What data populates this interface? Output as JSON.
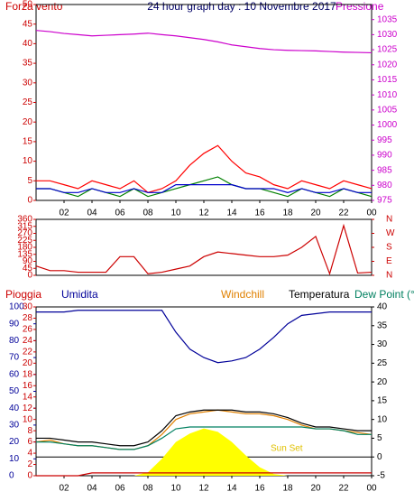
{
  "chart_data": [
    {
      "type": "line",
      "title": "24 hour graph day : 10 Novembre 2017",
      "y_label": "Forza vento",
      "y2_label": "Pressione",
      "x": [
        0,
        1,
        2,
        3,
        4,
        5,
        6,
        7,
        8,
        9,
        10,
        11,
        12,
        13,
        14,
        15,
        16,
        17,
        18,
        19,
        20,
        21,
        22,
        23,
        24
      ],
      "xlim": [
        0,
        24
      ],
      "xticks": [
        {
          "value": 2,
          "label": "02"
        },
        {
          "value": 4,
          "label": "04"
        },
        {
          "value": 6,
          "label": "06"
        },
        {
          "value": 8,
          "label": "08"
        },
        {
          "value": 10,
          "label": "10"
        },
        12,
        14,
        16,
        18,
        20,
        22,
        {
          "value": 24,
          "label": "00"
        }
      ],
      "ylim": [
        0,
        50
      ],
      "yticks": [
        0,
        5,
        10,
        15,
        20,
        25,
        30,
        35,
        40,
        45,
        50
      ],
      "ycolor": "#cc0000",
      "y2lim": [
        975,
        1040
      ],
      "y2ticks": [
        975,
        980,
        985,
        990,
        995,
        1000,
        1005,
        1010,
        1015,
        1020,
        1025,
        1030,
        1035
      ],
      "y2color": "#cc00cc",
      "series": [
        {
          "color": "#ff0000",
          "values": [
            5,
            5,
            4,
            3,
            5,
            4,
            3,
            5,
            2,
            3,
            5,
            9,
            12,
            14,
            10,
            7,
            6,
            4,
            3,
            5,
            4,
            3,
            5,
            4,
            3
          ]
        },
        {
          "color": "#008000",
          "values": [
            3,
            3,
            2,
            1,
            3,
            2,
            1,
            3,
            1,
            2,
            3,
            4,
            5,
            6,
            4,
            3,
            3,
            2,
            1,
            3,
            2,
            1,
            3,
            2,
            1
          ]
        },
        {
          "color": "#0000cc",
          "values": [
            3,
            3,
            2,
            2,
            3,
            2,
            2,
            3,
            2,
            2,
            4,
            4,
            4,
            4,
            4,
            3,
            3,
            3,
            2,
            3,
            2,
            2,
            3,
            2,
            2
          ]
        },
        {
          "color": "#cc00cc",
          "axis": "y2",
          "values": [
            1031.4,
            1031,
            1030.4,
            1030,
            1029.6,
            1029.8,
            1030,
            1030.2,
            1030.5,
            1030,
            1029.6,
            1029,
            1028.4,
            1027.6,
            1026.6,
            1026,
            1025.4,
            1025,
            1024.8,
            1024.7,
            1024.6,
            1024.4,
            1024.2,
            1024.1,
            1024
          ]
        }
      ]
    },
    {
      "type": "line",
      "x": [
        0,
        1,
        2,
        3,
        4,
        5,
        6,
        7,
        8,
        9,
        10,
        11,
        12,
        13,
        14,
        15,
        16,
        17,
        18,
        19,
        20,
        21,
        22,
        23,
        24
      ],
      "xlim": [
        0,
        24
      ],
      "ylim": [
        0,
        360
      ],
      "yticks": [
        0,
        45,
        90,
        135,
        180,
        225,
        270,
        315,
        360
      ],
      "ycolor": "#cc0000",
      "y2lim": [
        0,
        360
      ],
      "y2ticks": [
        {
          "value": 360,
          "label": "N"
        },
        {
          "value": 270,
          "label": "W"
        },
        {
          "value": 180,
          "label": "S"
        },
        {
          "value": 90,
          "label": "E"
        },
        {
          "value": 0,
          "label": "N"
        }
      ],
      "y2color": "#cc0000",
      "series": [
        {
          "color": "#cc0000",
          "values": [
            60,
            30,
            30,
            20,
            20,
            20,
            120,
            120,
            10,
            20,
            40,
            60,
            120,
            150,
            140,
            130,
            120,
            120,
            130,
            180,
            250,
            10,
            320,
            15,
            20
          ]
        }
      ]
    },
    {
      "type": "line",
      "annotation": "Sun Set",
      "x": [
        0,
        1,
        2,
        3,
        4,
        5,
        6,
        7,
        8,
        9,
        10,
        11,
        12,
        13,
        14,
        15,
        16,
        17,
        18,
        19,
        20,
        21,
        22,
        23,
        24
      ],
      "xlim": [
        0,
        24
      ],
      "xticks": [
        {
          "value": 2,
          "label": "02"
        },
        {
          "value": 4,
          "label": "04"
        },
        {
          "value": 6,
          "label": "06"
        },
        {
          "value": 8,
          "label": "08"
        },
        {
          "value": 10,
          "label": "10"
        },
        12,
        14,
        16,
        18,
        20,
        22,
        {
          "value": 24,
          "label": "00"
        }
      ],
      "ylim": [
        0,
        100
      ],
      "yticks": [
        0,
        10,
        20,
        30,
        40,
        50,
        60,
        70,
        80,
        90,
        100
      ],
      "ycolor": "#000099",
      "y3lim": [
        0,
        30
      ],
      "y3ticks": [
        0,
        2,
        4,
        6,
        8,
        10,
        12,
        14,
        16,
        18,
        20,
        22,
        24,
        26,
        28,
        30
      ],
      "y3color": "#cc0000",
      "y2lim": [
        -5,
        40
      ],
      "y2ticks": [
        -5,
        0,
        5,
        10,
        15,
        20,
        25,
        30,
        35,
        40
      ],
      "y2color": "#000000",
      "series": [
        {
          "color": "#ffff00",
          "area": true,
          "values": [
            0,
            0,
            0,
            0,
            0,
            0,
            0,
            0,
            2,
            10,
            20,
            25,
            28,
            26,
            20,
            12,
            5,
            1,
            0,
            0,
            0,
            0,
            0,
            0,
            0
          ]
        },
        {
          "name": "Pioggia",
          "color": "#cc0000",
          "axis": "y3",
          "values": [
            0,
            0,
            0,
            0,
            0.5,
            0.5,
            0.5,
            0.5,
            0.5,
            0.5,
            0.5,
            0.5,
            0.5,
            0.5,
            0.5,
            0.5,
            0.5,
            0.5,
            0.5,
            0.5,
            0.5,
            0.5,
            0.5,
            0.5,
            0.5
          ]
        },
        {
          "name": "Umidita",
          "color": "#000099",
          "values": [
            97,
            97,
            97,
            98,
            98,
            98,
            98,
            98,
            98,
            98,
            85,
            75,
            70,
            67,
            68,
            70,
            75,
            82,
            90,
            95,
            96,
            97,
            97,
            97,
            97
          ]
        },
        {
          "name": "Windchill",
          "color": "#e08000",
          "axis": "y2",
          "values": [
            4,
            4.5,
            3.5,
            3,
            3,
            2.5,
            2,
            2,
            3,
            6,
            10,
            11.5,
            12,
            12.5,
            12,
            11.5,
            11.5,
            11,
            10,
            8.5,
            7.5,
            7.5,
            7,
            6.5,
            6
          ]
        },
        {
          "name": "Temperatura",
          "color": "#000000",
          "axis": "y2",
          "values": [
            5,
            5,
            4.5,
            4,
            4,
            3.5,
            3,
            3,
            4,
            7,
            11,
            12,
            12.5,
            12.5,
            12.5,
            12,
            12,
            11.5,
            10.5,
            9,
            8,
            8,
            7.5,
            7,
            7
          ]
        },
        {
          "name": "Dew Point (°C",
          "color": "#008060",
          "axis": "y2",
          "values": [
            4,
            4,
            3.5,
            3,
            3,
            2.5,
            2,
            2,
            3,
            5,
            7.5,
            8,
            8,
            8,
            8,
            8,
            8,
            8,
            8,
            8,
            7.5,
            7.5,
            7,
            6,
            6
          ]
        }
      ]
    }
  ]
}
